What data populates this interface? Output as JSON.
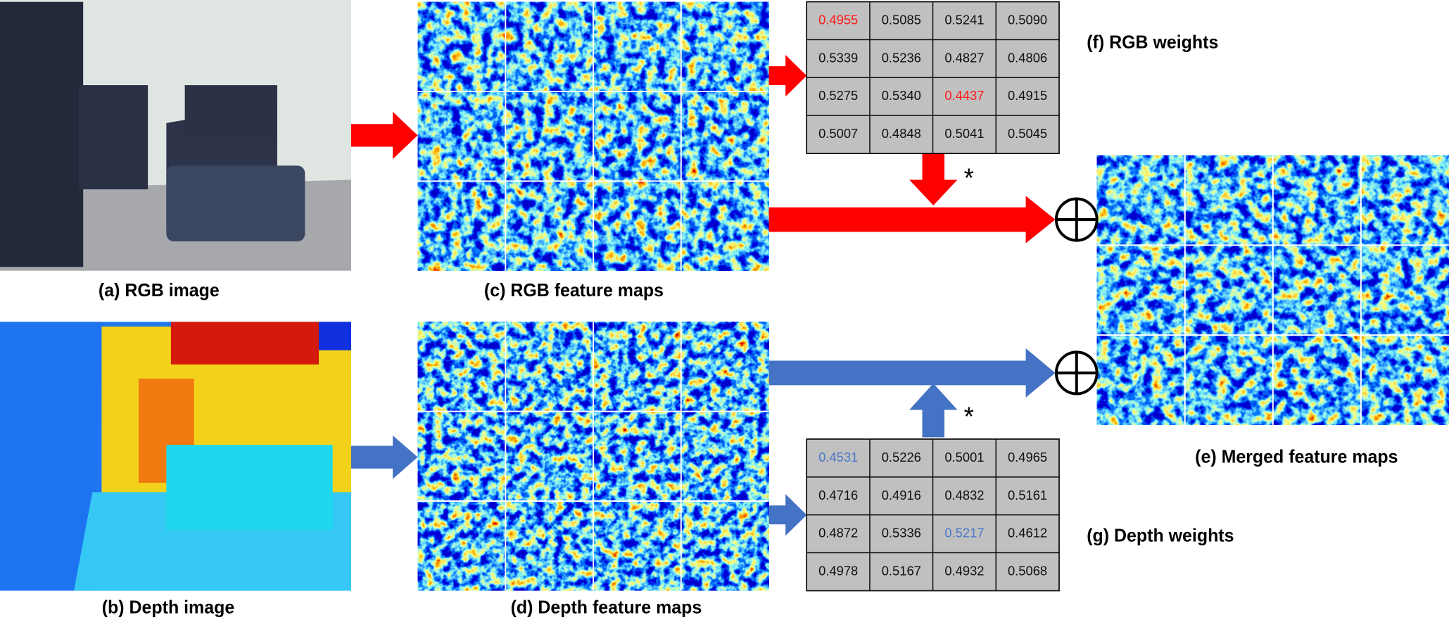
{
  "captions": {
    "rgb_image": "(a) RGB image",
    "depth_image": "(b) Depth image",
    "rgb_features": "(c) RGB feature maps",
    "depth_features": "(d) Depth feature maps",
    "merged_features": "(e) Merged feature maps",
    "rgb_weights": "(f) RGB weights",
    "depth_weights": "(g) Depth weights"
  },
  "operator": "*",
  "rgb_weights": {
    "highlight_color": "#ff1a1a",
    "highlighted": [
      [
        0,
        0
      ],
      [
        2,
        2
      ]
    ],
    "rows": [
      [
        "0.4955",
        "0.5085",
        "0.5241",
        "0.5090"
      ],
      [
        "0.5339",
        "0.5236",
        "0.4827",
        "0.4806"
      ],
      [
        "0.5275",
        "0.5340",
        "0.4437",
        "0.4915"
      ],
      [
        "0.5007",
        "0.4848",
        "0.5041",
        "0.5045"
      ]
    ]
  },
  "depth_weights": {
    "highlight_color": "#4a78c8",
    "highlighted": [
      [
        0,
        0
      ],
      [
        2,
        2
      ]
    ],
    "rows": [
      [
        "0.4531",
        "0.5226",
        "0.5001",
        "0.4965"
      ],
      [
        "0.4716",
        "0.4916",
        "0.4832",
        "0.5161"
      ],
      [
        "0.4872",
        "0.5336",
        "0.5217",
        "0.4612"
      ],
      [
        "0.4978",
        "0.5167",
        "0.4932",
        "0.5068"
      ]
    ]
  }
}
